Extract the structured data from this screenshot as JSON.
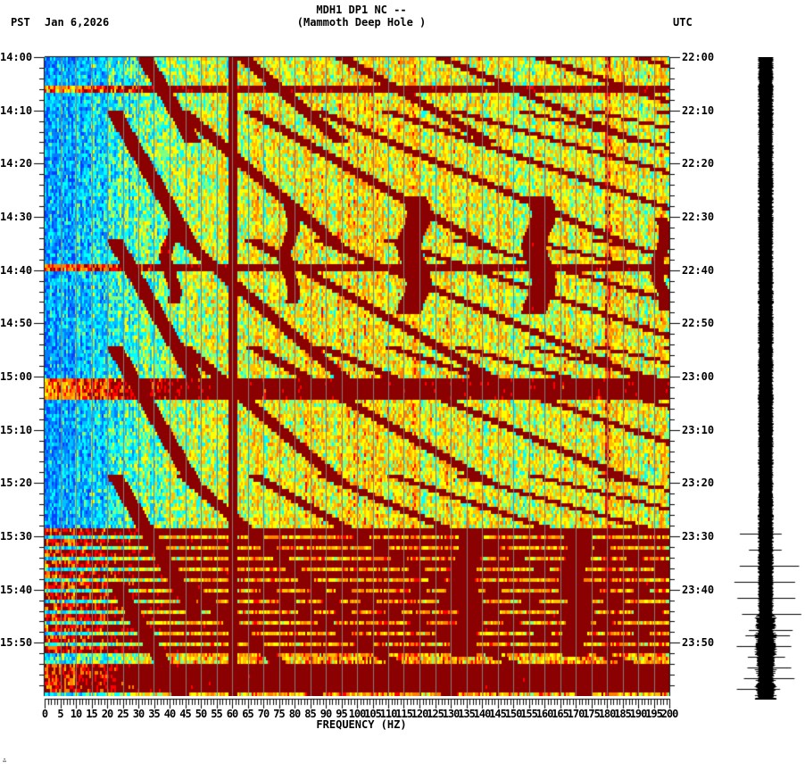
{
  "header": {
    "title_line1": "MDH1 DP1 NC --",
    "title_line2": "(Mammoth Deep Hole )",
    "left_timezone": "PST",
    "date": "Jan 6,2026",
    "right_timezone": "UTC"
  },
  "footer": {
    "corner_mark": "∴"
  },
  "colors": {
    "background": "#ffffff",
    "axis": "#000000",
    "gridline": "#808080",
    "colormap": [
      "#0040ff",
      "#0080ff",
      "#00c0ff",
      "#00ffff",
      "#80ff80",
      "#ffff00",
      "#ffc000",
      "#ff8000",
      "#ff0000",
      "#8b0000"
    ]
  },
  "chart_data": {
    "type": "heatmap",
    "title": "MDH1 DP1 NC -- (Mammoth Deep Hole )",
    "xlabel": "FREQUENCY (HZ)",
    "ylabel_left": "PST",
    "ylabel_right": "UTC",
    "xlim": [
      0,
      200
    ],
    "x_ticks": [
      0,
      5,
      10,
      15,
      20,
      25,
      30,
      35,
      40,
      45,
      50,
      55,
      60,
      65,
      70,
      75,
      80,
      85,
      90,
      95,
      100,
      105,
      110,
      115,
      120,
      125,
      130,
      135,
      140,
      145,
      150,
      155,
      160,
      165,
      170,
      175,
      180,
      185,
      190,
      195,
      200
    ],
    "x_minor_tick_step": 1,
    "y_range_minutes": 120,
    "y_ticks_left": [
      "14:00",
      "14:10",
      "14:20",
      "14:30",
      "14:40",
      "14:50",
      "15:00",
      "15:10",
      "15:20",
      "15:30",
      "15:40",
      "15:50"
    ],
    "y_ticks_right": [
      "22:00",
      "22:10",
      "22:20",
      "22:30",
      "22:40",
      "22:50",
      "23:00",
      "23:10",
      "23:20",
      "23:30",
      "23:40",
      "23:50"
    ],
    "y_minor_tick_step_minutes": 2,
    "grid": {
      "vertical_every_hz": 5,
      "color": "#808080"
    },
    "persistent_lines_hz": [
      60,
      180
    ],
    "low_freq_quiet_band_hz": [
      0,
      30
    ],
    "gliding_tracks": {
      "description": "Repeating upward-curving harmonic glides (~20 min cycles) from ~22 Hz rising with time",
      "cycle_start_minutes": [
        -10,
        10,
        34,
        54,
        78,
        98
      ],
      "cycle_length_minutes": 20,
      "harmonics": 9
    },
    "transient_features": [
      {
        "freq_hz": 40,
        "start_min": 28,
        "end_min": 46
      },
      {
        "freq_hz": 78,
        "start_min": 28,
        "end_min": 46
      },
      {
        "freq_hz": 118,
        "start_min": 26,
        "end_min": 48
      },
      {
        "freq_hz": 158,
        "start_min": 26,
        "end_min": 48
      },
      {
        "freq_hz": 197,
        "start_min": 30,
        "end_min": 47
      },
      {
        "freq_hz": 135,
        "start_min": 88,
        "end_min": 112
      },
      {
        "freq_hz": 170,
        "start_min": 88,
        "end_min": 112
      }
    ],
    "noisy_rows_minutes": [
      6,
      39,
      61,
      63,
      89,
      91,
      93,
      95,
      97,
      99,
      101,
      103,
      105,
      107,
      109,
      111,
      114,
      116,
      118
    ]
  },
  "waveform": {
    "label": "seismogram trace",
    "spike_rows_minutes": [
      89,
      92,
      95,
      98,
      101,
      104,
      107,
      108,
      110,
      112,
      114,
      116,
      118
    ]
  }
}
